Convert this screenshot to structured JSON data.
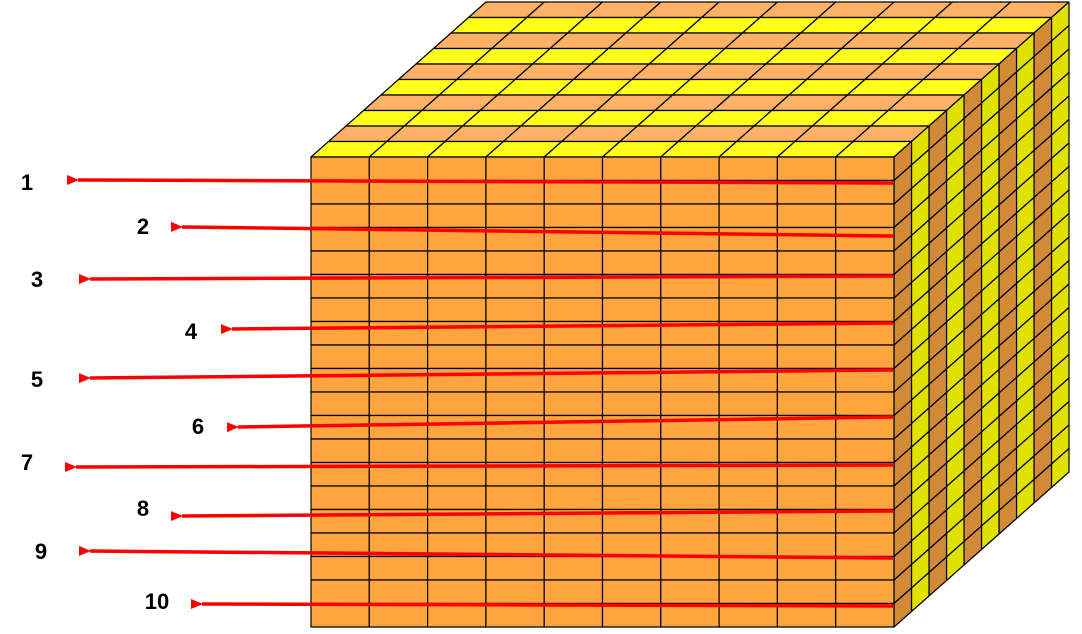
{
  "diagram": {
    "labels": [
      "1",
      "2",
      "3",
      "4",
      "5",
      "6",
      "7",
      "8",
      "9",
      "10"
    ],
    "grid": {
      "columns": 10,
      "rows": 20,
      "depth_layers": 10
    },
    "colors": {
      "front_face": "#FFA540",
      "top_a": "#FFB266",
      "top_b": "#FFFF1A",
      "side_a": "#D38A36",
      "side_b": "#E1E100",
      "outline": "#000000",
      "arrow": "#FF0000"
    }
  }
}
